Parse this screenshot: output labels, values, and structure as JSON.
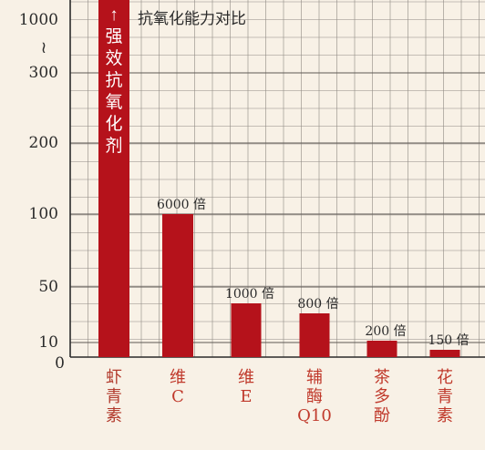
{
  "chart_data": {
    "type": "bar",
    "title": "抗氧化能力对比",
    "xlabel": "",
    "ylabel": "",
    "y_scale": "broken-nonlinear",
    "y_ticks": [
      "0",
      "10",
      "50",
      "100",
      "200",
      "300",
      "1000"
    ],
    "y_break_mark": "≀",
    "grid": true,
    "categories": [
      {
        "label_lines": [
          "虾",
          "青",
          "素"
        ]
      },
      {
        "label_lines": [
          "维",
          "C"
        ]
      },
      {
        "label_lines": [
          "维",
          "E"
        ]
      },
      {
        "label_lines": [
          "辅",
          "酶",
          "Q10"
        ]
      },
      {
        "label_lines": [
          "茶",
          "多",
          "酚"
        ]
      },
      {
        "label_lines": [
          "花",
          "青",
          "素"
        ]
      }
    ],
    "values": [
      null,
      6000,
      1000,
      800,
      200,
      150
    ],
    "data_labels": [
      "",
      "6000 倍",
      "1000 倍",
      "800 倍",
      "200 倍",
      "150 倍"
    ],
    "tallest_bar_label": [
      "↑",
      "强",
      "效",
      "抗",
      "氧",
      "化",
      "剂"
    ],
    "colors": {
      "bar": "#b5121b",
      "first_category_label": "#b23a2c",
      "category_label": "#c0392b",
      "grid": "#8f8a83",
      "grid_mid": "#5e5954",
      "axis": "#2a2a2a",
      "text": "#2b2b2b",
      "background": "#f8f1e6",
      "bar_text": "#ffffff"
    }
  }
}
